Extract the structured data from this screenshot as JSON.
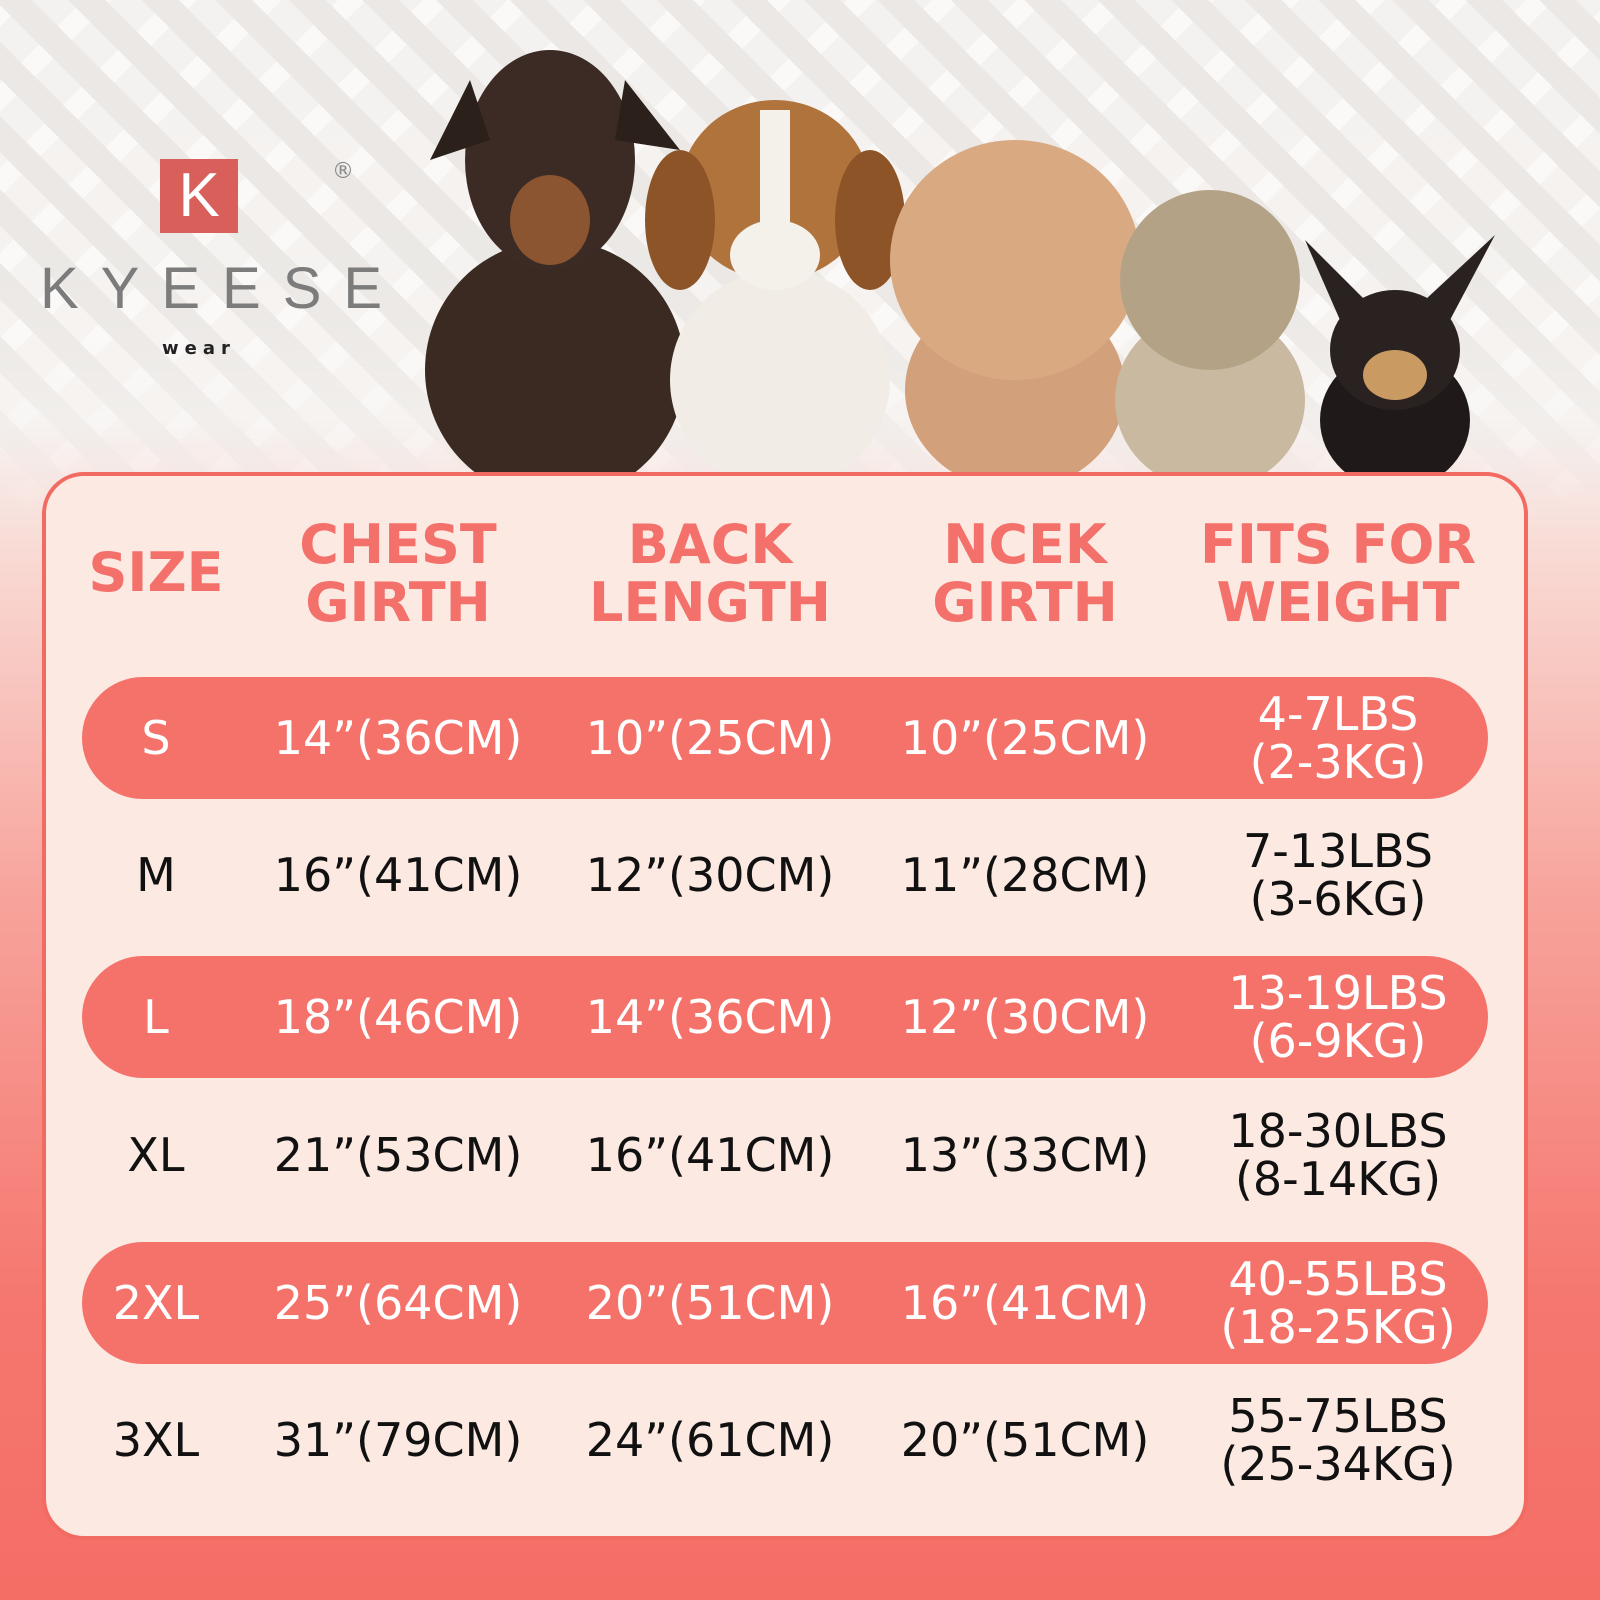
{
  "brand": {
    "logo_letter": "K",
    "name": "KYEESE",
    "sub": "wear",
    "registered": "®"
  },
  "colors": {
    "accent": "#f5726b",
    "panel": "#fbe9e2",
    "header_text": "#f4706a"
  },
  "table": {
    "headers": [
      [
        "SIZE"
      ],
      [
        "CHEST",
        "GIRTH"
      ],
      [
        "BACK",
        "LENGTH"
      ],
      [
        "NCEK",
        "GIRTH"
      ],
      [
        "FITS FOR",
        "WEIGHT"
      ]
    ],
    "rows": [
      {
        "size": "S",
        "chest": "14”(36CM)",
        "back": "10”(25CM)",
        "neck": "10”(25CM)",
        "weight": [
          "4-7LBS",
          "(2-3KG)"
        ],
        "highlight": true
      },
      {
        "size": "M",
        "chest": "16”(41CM)",
        "back": "12”(30CM)",
        "neck": "11”(28CM)",
        "weight": [
          "7-13LBS",
          "(3-6KG)"
        ],
        "highlight": false
      },
      {
        "size": "L",
        "chest": "18”(46CM)",
        "back": "14”(36CM)",
        "neck": "12”(30CM)",
        "weight": [
          "13-19LBS",
          "(6-9KG)"
        ],
        "highlight": true
      },
      {
        "size": "XL",
        "chest": "21”(53CM)",
        "back": "16”(41CM)",
        "neck": "13”(33CM)",
        "weight": [
          "18-30LBS",
          "(8-14KG)"
        ],
        "highlight": false
      },
      {
        "size": "2XL",
        "chest": "25”(64CM)",
        "back": "20”(51CM)",
        "neck": "16”(41CM)",
        "weight": [
          "40-55LBS",
          "(18-25KG)"
        ],
        "highlight": true
      },
      {
        "size": "3XL",
        "chest": "31”(79CM)",
        "back": "24”(61CM)",
        "neck": "20”(51CM)",
        "weight": [
          "55-75LBS",
          "(25-34KG)"
        ],
        "highlight": false
      }
    ]
  }
}
